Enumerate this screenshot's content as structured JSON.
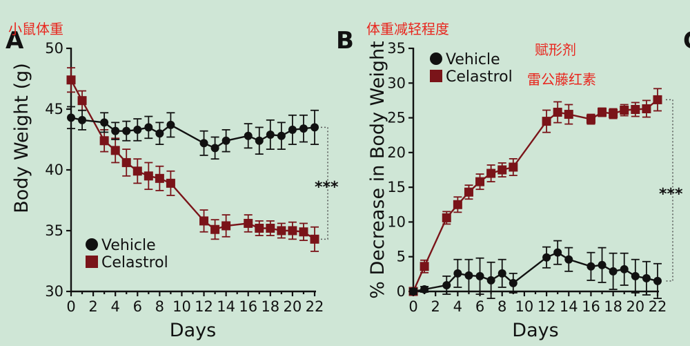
{
  "panel_a": {
    "letter": "A",
    "annotation": "小鼠体重",
    "significance": "***"
  },
  "panel_b": {
    "letter": "B",
    "annotation_title": "体重减轻程度",
    "annotation_vehicle": "赋形剂",
    "annotation_celastrol": "雷公藤红素",
    "significance": "***"
  },
  "panel_c": {
    "letter": "C"
  },
  "colors": {
    "vehicle": "#111111",
    "celastrol": "#7a1419",
    "annotation": "#e8261e",
    "background": "#cfe6d6"
  },
  "chart_data": [
    {
      "id": "A",
      "type": "line",
      "xlabel": "Days",
      "ylabel": "Body Weight (g)",
      "xlim": [
        0,
        22
      ],
      "ylim": [
        30,
        50
      ],
      "x_ticks": [
        0,
        2,
        4,
        6,
        8,
        10,
        12,
        14,
        16,
        18,
        20,
        22
      ],
      "y_ticks": [
        30,
        35,
        40,
        45,
        50
      ],
      "legend_position": "bottom-left",
      "series": [
        {
          "name": "Vehicle",
          "marker": "circle",
          "x": [
            0,
            1,
            3,
            4,
            5,
            6,
            7,
            8,
            9,
            12,
            13,
            14,
            16,
            17,
            18,
            19,
            20,
            21,
            22
          ],
          "y": [
            44.3,
            44.1,
            43.9,
            43.2,
            43.2,
            43.3,
            43.5,
            43.0,
            43.7,
            42.2,
            41.8,
            42.4,
            42.8,
            42.4,
            42.9,
            42.8,
            43.3,
            43.4,
            43.5
          ],
          "err": [
            0.9,
            0.8,
            0.8,
            0.7,
            0.8,
            0.9,
            0.9,
            0.9,
            1.0,
            1.0,
            0.9,
            0.9,
            1.0,
            1.1,
            1.2,
            1.1,
            1.2,
            1.1,
            1.4
          ]
        },
        {
          "name": "Celastrol",
          "marker": "square",
          "x": [
            0,
            1,
            3,
            4,
            5,
            6,
            7,
            8,
            9,
            12,
            13,
            14,
            16,
            17,
            18,
            19,
            20,
            21,
            22
          ],
          "y": [
            47.4,
            45.7,
            42.4,
            41.6,
            40.6,
            39.9,
            39.5,
            39.3,
            38.9,
            35.8,
            35.1,
            35.4,
            35.6,
            35.2,
            35.2,
            35.0,
            35.0,
            34.9,
            34.3
          ],
          "err": [
            1.0,
            0.8,
            0.9,
            1.0,
            1.1,
            1.0,
            1.1,
            1.0,
            1.0,
            0.9,
            0.8,
            0.9,
            0.7,
            0.6,
            0.6,
            0.6,
            0.7,
            0.7,
            1.0
          ]
        }
      ]
    },
    {
      "id": "B",
      "type": "line",
      "xlabel": "Days",
      "ylabel": "% Decrease in Body Weight",
      "xlim": [
        0,
        22
      ],
      "ylim": [
        0,
        35
      ],
      "x_ticks": [
        0,
        2,
        4,
        6,
        8,
        10,
        12,
        14,
        16,
        18,
        20,
        22
      ],
      "y_ticks": [
        0,
        5,
        10,
        15,
        20,
        25,
        30,
        35
      ],
      "legend_position": "top-left",
      "series": [
        {
          "name": "Vehicle",
          "marker": "circle",
          "x": [
            0,
            1,
            3,
            4,
            5,
            6,
            7,
            8,
            9,
            12,
            13,
            14,
            16,
            17,
            18,
            19,
            20,
            21,
            22
          ],
          "y": [
            0,
            0.3,
            0.9,
            2.6,
            2.3,
            2.2,
            1.6,
            2.6,
            1.2,
            4.9,
            5.6,
            4.6,
            3.6,
            3.8,
            2.9,
            3.2,
            2.2,
            1.9,
            1.5
          ],
          "err": [
            0.4,
            0.4,
            1.3,
            2.0,
            2.3,
            2.6,
            2.6,
            2.0,
            1.4,
            1.5,
            1.7,
            1.7,
            2.0,
            2.5,
            2.6,
            2.3,
            2.4,
            2.4,
            2.5
          ]
        },
        {
          "name": "Celastrol",
          "marker": "square",
          "x": [
            0,
            1,
            3,
            4,
            5,
            6,
            7,
            8,
            9,
            12,
            13,
            14,
            16,
            17,
            18,
            19,
            20,
            21,
            22
          ],
          "y": [
            0,
            3.6,
            10.6,
            12.5,
            14.3,
            15.8,
            17.0,
            17.5,
            17.9,
            24.5,
            25.8,
            25.5,
            24.8,
            25.8,
            25.6,
            26.1,
            26.2,
            26.3,
            27.6
          ],
          "err": [
            0.5,
            0.9,
            0.9,
            1.1,
            1.0,
            1.1,
            1.2,
            1.0,
            1.2,
            1.6,
            1.5,
            1.4,
            0.7,
            0.6,
            0.7,
            0.8,
            1.0,
            1.2,
            1.6
          ]
        }
      ]
    }
  ]
}
